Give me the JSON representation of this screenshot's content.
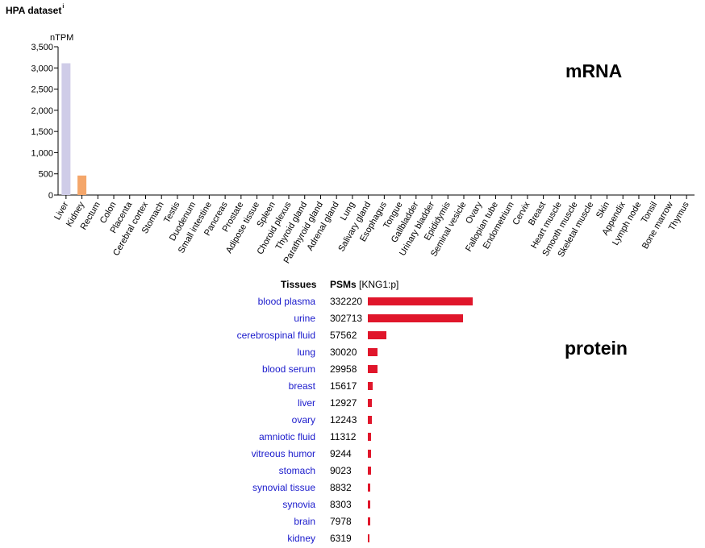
{
  "header": {
    "title": "HPA dataset",
    "info_marker": "i"
  },
  "colors": {
    "liver_bar": "#cfcce8",
    "kidney_bar": "#f4a66a",
    "protein_bar": "#e0162b",
    "link": "#1a1acc"
  },
  "chart_data": [
    {
      "type": "bar",
      "annotation": "mRNA",
      "ylabel": "nTPM",
      "ylim": [
        0,
        3500
      ],
      "yticks": [
        "0",
        "500",
        "1,000",
        "1,500",
        "2,000",
        "2,500",
        "3,000",
        "3,500"
      ],
      "ytick_values": [
        0,
        500,
        1000,
        1500,
        2000,
        2500,
        3000,
        3500
      ],
      "categories": [
        "Liver",
        "Kidney",
        "Rectum",
        "Colon",
        "Placenta",
        "Cerebral cortex",
        "Stomach",
        "Testis",
        "Duodenum",
        "Small intestine",
        "Pancreas",
        "Prostate",
        "Adipose tissue",
        "Spleen",
        "Choroid plexus",
        "Thyroid gland",
        "Parathyroid gland",
        "Adrenal gland",
        "Lung",
        "Salivary gland",
        "Esophagus",
        "Tongue",
        "Gallbladder",
        "Urinary bladder",
        "Epididymis",
        "Seminal vesicle",
        "Ovary",
        "Fallopian tube",
        "Endometrium",
        "Cervix",
        "Breast",
        "Heart muscle",
        "Smooth muscle",
        "Skeletal muscle",
        "Skin",
        "Appendix",
        "Lymph node",
        "Tonsil",
        "Bone marrow",
        "Thymus"
      ],
      "values": [
        3110,
        460,
        0,
        0,
        0,
        0,
        0,
        0,
        0,
        0,
        0,
        0,
        0,
        0,
        0,
        0,
        0,
        0,
        0,
        0,
        0,
        0,
        0,
        0,
        0,
        0,
        0,
        0,
        0,
        0,
        0,
        0,
        0,
        0,
        0,
        0,
        0,
        0,
        0,
        0
      ]
    },
    {
      "type": "bar",
      "orientation": "horizontal",
      "annotation": "protein",
      "column_headers": {
        "tissues": "Tissues",
        "psms": "PSMs",
        "peptide": "[KNG1:p]"
      },
      "categories": [
        "blood plasma",
        "urine",
        "cerebrospinal fluid",
        "lung",
        "blood serum",
        "breast",
        "liver",
        "ovary",
        "amniotic fluid",
        "vitreous humor",
        "stomach",
        "synovial tissue",
        "synovia",
        "brain",
        "kidney"
      ],
      "values": [
        332220,
        302713,
        57562,
        30020,
        29958,
        15617,
        12927,
        12243,
        11312,
        9244,
        9023,
        8832,
        8303,
        7978,
        6319
      ]
    }
  ]
}
